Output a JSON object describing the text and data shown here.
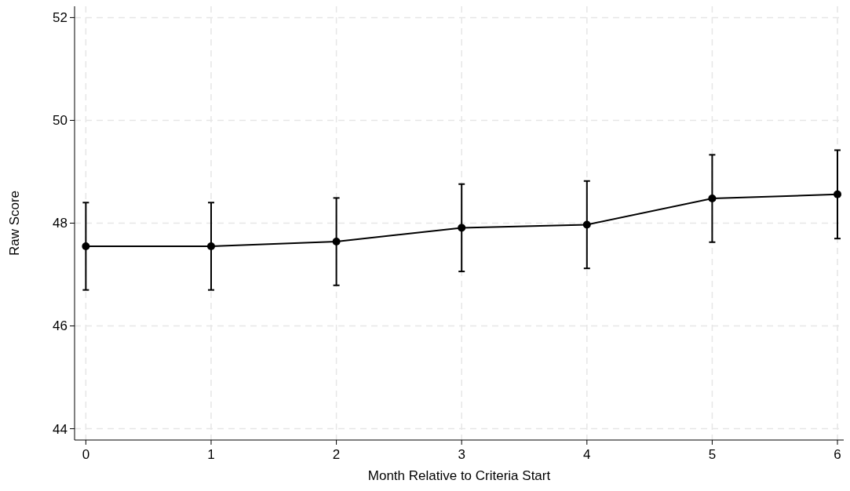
{
  "chart_data": {
    "type": "line",
    "xlabel": "Month Relative to Criteria Start",
    "ylabel": "Raw Score",
    "x": [
      0,
      1,
      2,
      3,
      4,
      5,
      6
    ],
    "series": [
      {
        "color": "#000000",
        "values": [
          47.55,
          47.55,
          47.64,
          47.91,
          47.97,
          48.48,
          48.56
        ],
        "errors": [
          0.85,
          0.85,
          0.85,
          0.85,
          0.85,
          0.85,
          0.86
        ]
      }
    ],
    "marker": "circle",
    "line_style": "solid",
    "xlim": [
      -0.09,
      6.05
    ],
    "xticks": [
      0,
      1,
      2,
      3,
      4,
      5,
      6
    ],
    "ylim": [
      43.78,
      52.22
    ],
    "yticks": [
      44,
      46,
      48,
      50,
      52
    ],
    "grid": true
  }
}
